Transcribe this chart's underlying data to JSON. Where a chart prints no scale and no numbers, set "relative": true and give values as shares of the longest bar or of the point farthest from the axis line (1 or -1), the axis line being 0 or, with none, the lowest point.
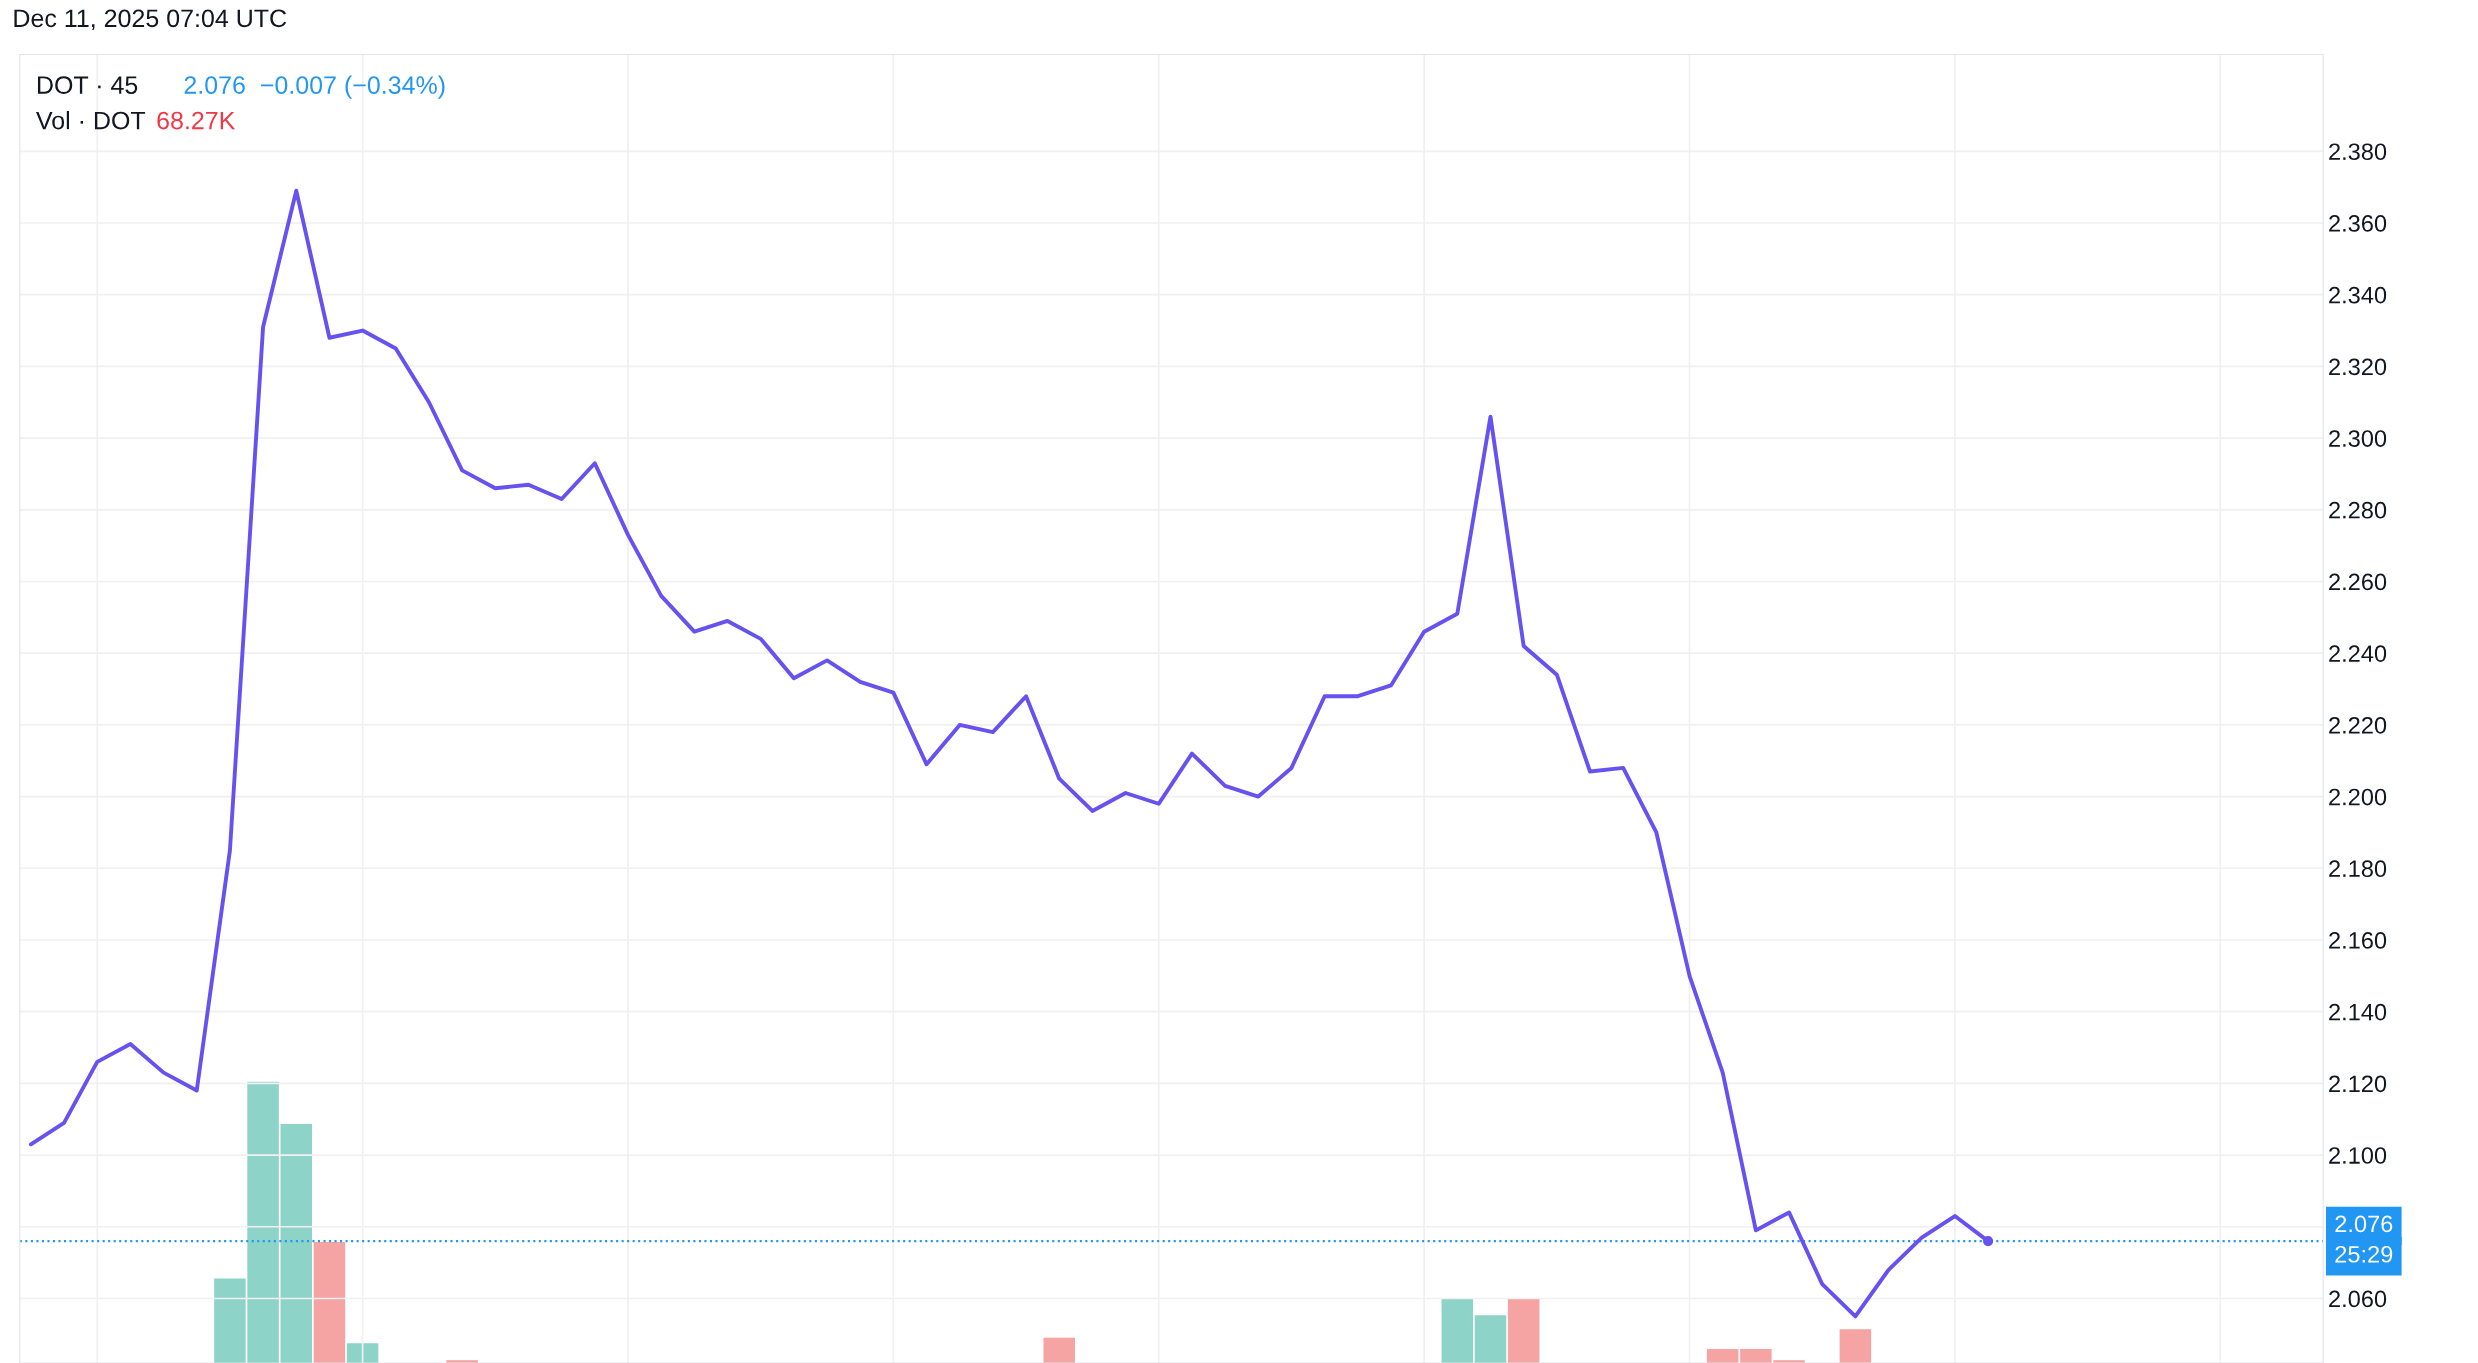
{
  "chart_data": [
    {
      "type": "line",
      "categories": [
        null,
        null,
        null,
        null,
        null,
        null,
        null,
        null,
        null,
        null,
        null,
        null,
        null,
        null,
        null,
        null,
        null,
        null,
        null,
        null,
        null,
        null,
        null,
        null,
        null,
        null,
        null,
        null,
        null,
        null,
        null,
        null,
        null,
        null,
        null,
        null,
        null,
        null,
        null,
        null,
        null,
        null,
        null,
        null,
        null,
        null,
        null,
        null,
        null,
        null,
        null,
        null,
        null,
        null,
        null,
        null,
        null,
        null,
        null,
        null,
        null,
        null,
        null,
        null,
        null,
        null,
        null,
        null,
        null,
        null
      ],
      "series": [
        {
          "values": [
            2.103,
            2.109,
            2.126,
            2.131,
            2.123,
            2.118,
            2.185,
            2.331,
            2.369,
            2.328,
            2.33,
            2.325,
            2.31,
            2.291,
            2.286,
            2.287,
            2.283,
            2.293,
            2.273,
            2.256,
            2.246,
            2.249,
            2.244,
            2.233,
            2.238,
            2.232,
            2.229,
            2.209,
            2.22,
            2.218,
            2.228,
            2.205,
            2.196,
            2.201,
            2.198,
            2.212,
            2.203,
            2.2,
            2.208,
            2.228,
            2.228,
            2.231,
            2.246,
            2.251,
            2.306,
            2.242,
            2.234,
            2.207,
            2.208,
            2.19,
            2.15,
            2.123,
            2.079,
            2.084,
            2.064,
            2.055,
            2.068,
            2.077,
            2.083,
            2.076,
            null,
            null,
            null,
            null,
            null,
            null,
            null,
            null,
            null,
            null
          ],
          "color": "#6652f0"
        }
      ],
      "ylim": [
        2.042,
        2.407
      ],
      "yticks": [
        {
          "value": 2.06,
          "label": "2.060"
        },
        {
          "value": 2.08,
          "label": null
        },
        {
          "value": 2.1,
          "label": "2.100"
        },
        {
          "value": 2.12,
          "label": "2.120"
        },
        {
          "value": 2.14,
          "label": "2.140"
        },
        {
          "value": 2.16,
          "label": "2.160"
        },
        {
          "value": 2.18,
          "label": "2.180"
        },
        {
          "value": 2.2,
          "label": "2.200"
        },
        {
          "value": 2.22,
          "label": "2.220"
        },
        {
          "value": 2.24,
          "label": "2.240"
        },
        {
          "value": 2.26,
          "label": "2.260"
        },
        {
          "value": 2.28,
          "label": "2.280"
        },
        {
          "value": 2.3,
          "label": "2.300"
        },
        {
          "value": 2.32,
          "label": "2.320"
        },
        {
          "value": 2.34,
          "label": "2.340"
        },
        {
          "value": 2.36,
          "label": "2.360"
        },
        {
          "value": 2.38,
          "label": "2.380"
        }
      ],
      "grid": true,
      "marker": "none",
      "line_style": "solid",
      "ref_lines": [
        {
          "axis": "y",
          "value": 2.076,
          "label": "2.076",
          "color": "#2196f3",
          "line_style": "dotted"
        }
      ],
      "annotations": [
        "Dec 11, 2025 07:04 UTC",
        "DOT · 45",
        "2.076  −0.007 (−0.34%)",
        "25:29"
      ]
    },
    {
      "type": "bar",
      "relative": true,
      "categories": [
        null,
        null,
        null,
        null,
        null,
        null,
        null,
        null,
        null,
        null,
        null,
        null,
        null,
        null,
        null,
        null,
        null,
        null,
        null,
        null,
        null,
        null,
        null,
        null,
        null,
        null,
        null,
        null,
        null,
        null,
        null,
        null,
        null,
        null,
        null,
        null,
        null,
        null,
        null,
        null,
        null,
        null,
        null,
        null,
        null,
        null,
        null,
        null,
        null,
        null,
        null,
        null,
        null,
        null,
        null,
        null,
        null,
        null,
        null,
        null,
        null,
        null,
        null,
        null,
        null,
        null,
        null,
        null,
        null,
        null
      ],
      "values": [
        null,
        null,
        null,
        null,
        null,
        null,
        0.3,
        1,
        0.85,
        0.43,
        0.07,
        null,
        null,
        0.01,
        null,
        null,
        null,
        null,
        null,
        null,
        null,
        null,
        null,
        null,
        null,
        null,
        null,
        null,
        null,
        null,
        null,
        0.09,
        null,
        null,
        null,
        null,
        null,
        null,
        null,
        null,
        null,
        null,
        null,
        0.23,
        0.17,
        0.23,
        null,
        null,
        null,
        null,
        null,
        0.05,
        0.05,
        0.01,
        null,
        0.12,
        null,
        null,
        null,
        null,
        null,
        null,
        null,
        null,
        null,
        null,
        null,
        null,
        null,
        null
      ],
      "colors": [
        null,
        null,
        null,
        null,
        null,
        null,
        "#8ed3c7",
        "#8ed3c7",
        "#8ed3c7",
        "#f5a3a3",
        "#8ed3c7",
        null,
        null,
        "#f5a3a3",
        null,
        null,
        null,
        null,
        null,
        null,
        null,
        null,
        null,
        null,
        null,
        null,
        null,
        null,
        null,
        null,
        null,
        "#f5a3a3",
        null,
        null,
        null,
        null,
        null,
        null,
        null,
        null,
        null,
        null,
        null,
        "#8ed3c7",
        "#8ed3c7",
        "#f5a3a3",
        null,
        null,
        null,
        null,
        null,
        "#f5a3a3",
        "#f5a3a3",
        "#f5a3a3",
        null,
        "#f5a3a3",
        null,
        null,
        null,
        null,
        null,
        null,
        null,
        null,
        null,
        null,
        null,
        null,
        null,
        null
      ],
      "annotations": [
        "Vol · DOT",
        "68.27K"
      ]
    }
  ]
}
